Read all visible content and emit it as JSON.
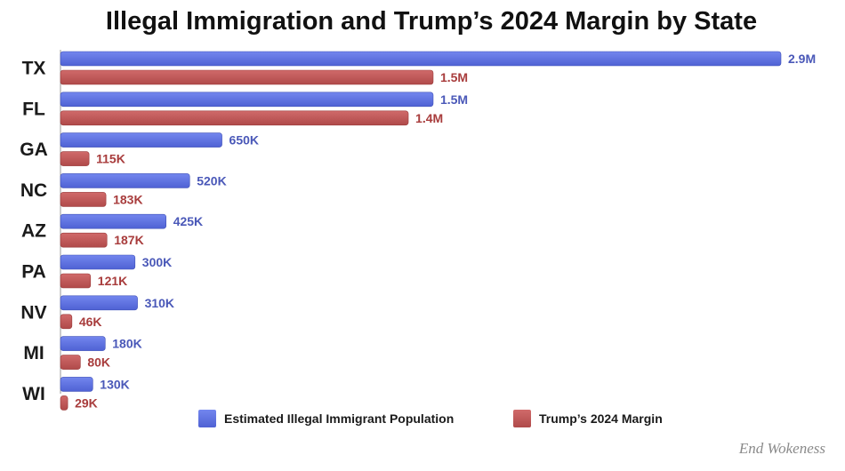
{
  "chart_data": {
    "type": "bar",
    "orientation": "horizontal",
    "title": "Illegal Immigration and Trump’s 2024 Margin by State",
    "categories": [
      "TX",
      "FL",
      "GA",
      "NC",
      "AZ",
      "PA",
      "NV",
      "MI",
      "WI"
    ],
    "series": [
      {
        "name": "Estimated Illegal Immigrant Population",
        "color": "#5a6fe0",
        "label_color": "#4a58b8",
        "values": [
          2900000,
          1500000,
          650000,
          520000,
          425000,
          300000,
          310000,
          180000,
          130000
        ],
        "labels": [
          "2.9M",
          "1.5M",
          "650K",
          "520K",
          "425K",
          "300K",
          "310K",
          "180K",
          "130K"
        ]
      },
      {
        "name": "Trump’s 2024 Margin",
        "color": "#c25a5a",
        "label_color": "#a83c3c",
        "values": [
          1500000,
          1400000,
          115000,
          183000,
          187000,
          121000,
          46000,
          80000,
          29000
        ],
        "labels": [
          "1.5M",
          "1.4M",
          "115K",
          "183K",
          "187K",
          "121K",
          "46K",
          "80K",
          "29K"
        ]
      }
    ],
    "xlim": [
      0,
      2900000
    ],
    "grid": false,
    "legend_position": "bottom"
  },
  "watermark": "End Wokeness"
}
